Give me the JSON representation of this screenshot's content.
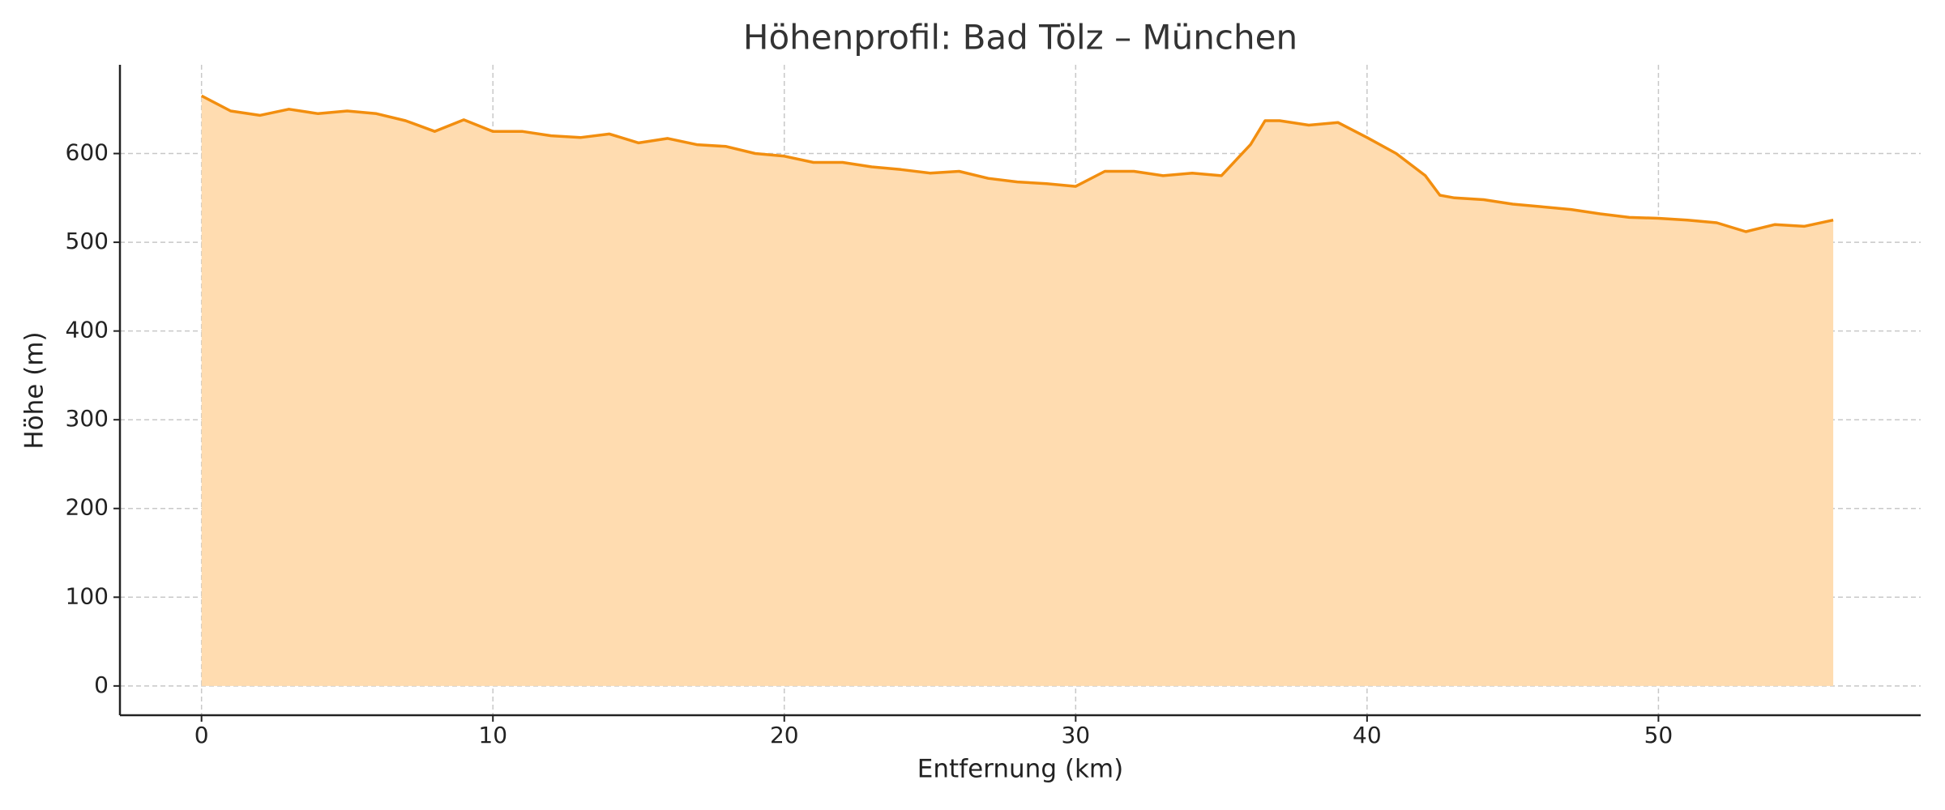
{
  "chart_data": {
    "type": "area",
    "title": "Höhenprofil: Bad Tölz – München",
    "xlabel": "Entfernung (km)",
    "ylabel": "Höhe (m)",
    "x": [
      0,
      1,
      2,
      3,
      4,
      5,
      6,
      7,
      8,
      9,
      10,
      11,
      12,
      13,
      14,
      15,
      16,
      17,
      18,
      19,
      20,
      21,
      22,
      23,
      24,
      25,
      26,
      27,
      28,
      29,
      30,
      31,
      32,
      33,
      34,
      35,
      36,
      36.5,
      37,
      38,
      39,
      40,
      41,
      42,
      42.5,
      43,
      44,
      45,
      46,
      47,
      48,
      49,
      50,
      51,
      52,
      53,
      54,
      55,
      56
    ],
    "values": [
      665,
      648,
      643,
      650,
      645,
      648,
      645,
      637,
      625,
      638,
      625,
      625,
      620,
      618,
      622,
      612,
      617,
      610,
      608,
      600,
      597,
      590,
      590,
      585,
      582,
      578,
      580,
      572,
      568,
      566,
      563,
      580,
      580,
      575,
      578,
      575,
      610,
      637,
      637,
      632,
      635,
      618,
      600,
      575,
      553,
      550,
      548,
      543,
      540,
      537,
      532,
      528,
      527,
      525,
      522,
      512,
      520,
      518,
      525
    ],
    "color": "#f28e0f",
    "fill_color": "#ffdcb0",
    "xlim": [
      -2.8,
      59
    ],
    "ylim": [
      -33,
      700
    ],
    "xticks": [
      0,
      10,
      20,
      30,
      40,
      50
    ],
    "yticks": [
      0,
      100,
      200,
      300,
      400,
      500,
      600
    ],
    "grid": true
  }
}
